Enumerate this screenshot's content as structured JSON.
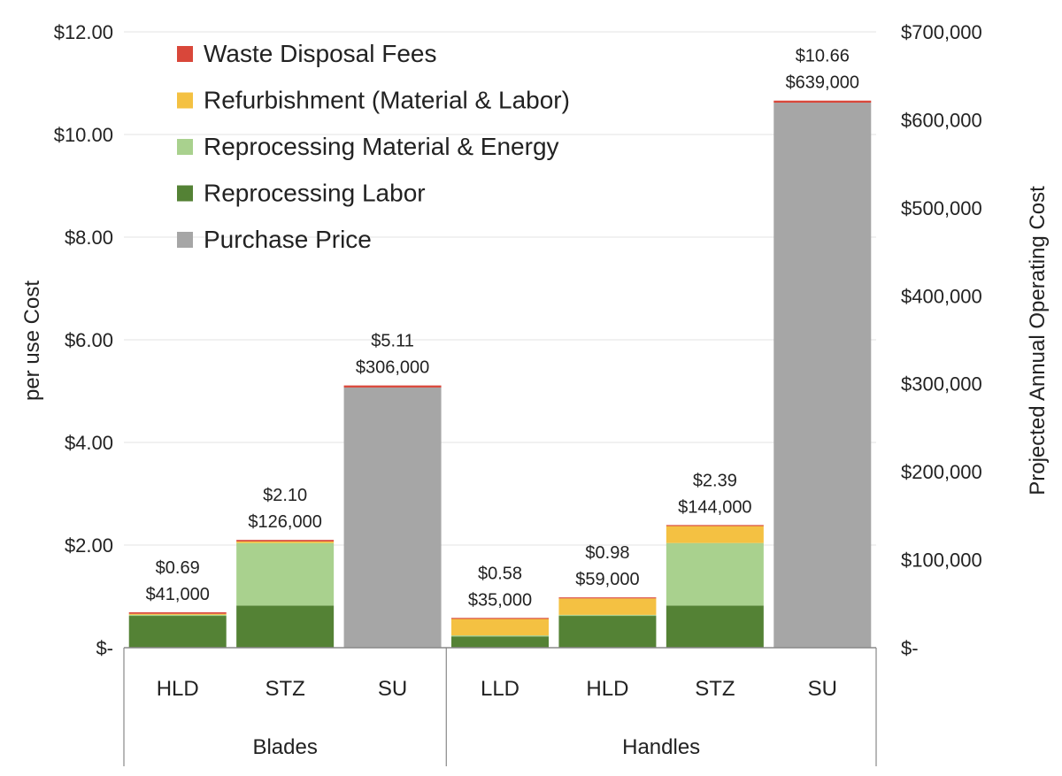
{
  "chart_data": {
    "type": "bar",
    "stacked": true,
    "ylabel": "per use Cost",
    "y2label": "Projected Annual Operating Cost",
    "ylim": [
      0,
      12
    ],
    "y2lim": [
      0,
      700000
    ],
    "y_ticks": [
      "$-",
      "$2.00",
      "$4.00",
      "$6.00",
      "$8.00",
      "$10.00",
      "$12.00"
    ],
    "y_tick_values": [
      0,
      2,
      4,
      6,
      8,
      10,
      12
    ],
    "y2_ticks": [
      "$-",
      "$100,000",
      "$200,000",
      "$300,000",
      "$400,000",
      "$500,000",
      "$600,000",
      "$700,000"
    ],
    "y2_tick_values": [
      0,
      100000,
      200000,
      300000,
      400000,
      500000,
      600000,
      700000
    ],
    "grid": true,
    "legend_position": "top-left",
    "groups": [
      {
        "label": "Blades",
        "categories": [
          "HLD",
          "STZ",
          "SU"
        ]
      },
      {
        "label": "Handles",
        "categories": [
          "LLD",
          "HLD",
          "STZ",
          "SU"
        ]
      }
    ],
    "categories": [
      "HLD",
      "STZ",
      "SU",
      "LLD",
      "HLD",
      "STZ",
      "SU"
    ],
    "series": [
      {
        "name": "Purchase Price",
        "color": "#a6a6a6",
        "values": [
          0,
          0,
          5.07,
          0,
          0,
          0,
          10.62
        ]
      },
      {
        "name": "Reprocessing Labor",
        "color": "#548235",
        "values": [
          0.62,
          0.82,
          0,
          0.22,
          0.62,
          0.82,
          0
        ]
      },
      {
        "name": "Reprocessing Material & Energy",
        "color": "#a9d18e",
        "values": [
          0.02,
          1.22,
          0,
          0.02,
          0.02,
          1.22,
          0
        ]
      },
      {
        "name": "Refurbishment (Material & Labor)",
        "color": "#f4c142",
        "values": [
          0.02,
          0.03,
          0,
          0.32,
          0.32,
          0.33,
          0
        ]
      },
      {
        "name": "Waste Disposal Fees",
        "color": "#d9473a",
        "values": [
          0.03,
          0.03,
          0.04,
          0.02,
          0.02,
          0.02,
          0.04
        ]
      }
    ],
    "legend_order": [
      "Waste Disposal Fees",
      "Refurbishment (Material & Labor)",
      "Reprocessing Material & Energy",
      "Reprocessing Labor",
      "Purchase Price"
    ],
    "totals": [
      {
        "per_use": "$0.69",
        "annual": "$41,000"
      },
      {
        "per_use": "$2.10",
        "annual": "$126,000"
      },
      {
        "per_use": "$5.11",
        "annual": "$306,000"
      },
      {
        "per_use": "$0.58",
        "annual": "$35,000"
      },
      {
        "per_use": "$0.98",
        "annual": "$59,000"
      },
      {
        "per_use": "$2.39",
        "annual": "$144,000"
      },
      {
        "per_use": "$10.66",
        "annual": "$639,000"
      }
    ],
    "total_values": [
      0.69,
      2.1,
      5.11,
      0.58,
      0.98,
      2.39,
      10.66
    ]
  }
}
